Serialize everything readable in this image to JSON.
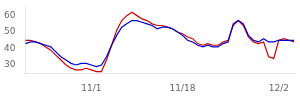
{
  "chart_data": {
    "type": "line",
    "categories": [
      null,
      null,
      null,
      null,
      null,
      null,
      null,
      null,
      null,
      null,
      null,
      null,
      null,
      "11/1",
      null,
      null,
      null,
      null,
      null,
      null,
      null,
      null,
      null,
      null,
      null,
      null,
      null,
      null,
      null,
      null,
      null,
      "11/18",
      null,
      null,
      null,
      null,
      null,
      null,
      null,
      null,
      null,
      null,
      null,
      null,
      null,
      null,
      null,
      null,
      null,
      null,
      "12/2",
      null,
      null,
      null
    ],
    "series": [
      {
        "color": "#0000cc",
        "values": [
          43,
          44,
          44,
          43,
          42,
          41,
          38,
          35,
          33,
          31,
          30,
          31,
          31,
          30,
          29,
          30,
          35,
          42,
          48,
          53,
          55,
          57,
          57,
          56,
          55,
          54,
          52,
          53,
          53,
          52,
          50,
          48,
          45,
          44,
          42,
          41,
          42,
          41,
          41,
          43,
          44,
          55,
          57,
          55,
          48,
          45,
          44,
          46,
          44,
          44,
          45,
          45,
          45,
          45
        ]
      },
      {
        "color": "#cc0000",
        "values": [
          45,
          45,
          44,
          43,
          41,
          39,
          36,
          33,
          30,
          28,
          27,
          27,
          28,
          27,
          26,
          26,
          33,
          42,
          51,
          57,
          60,
          62,
          60,
          58,
          57,
          55,
          54,
          54,
          53,
          52,
          50,
          49,
          47,
          46,
          43,
          42,
          43,
          42,
          42,
          44,
          45,
          54,
          57,
          54,
          47,
          44,
          43,
          44,
          35,
          34,
          45,
          46,
          45,
          44
        ]
      }
    ],
    "ylim": [
      25,
      65
    ],
    "yticks": [
      30,
      40,
      50,
      60
    ],
    "grid": false
  }
}
